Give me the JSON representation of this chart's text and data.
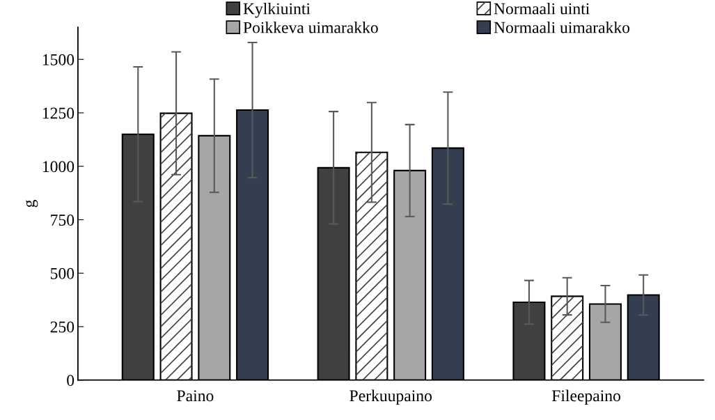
{
  "chart_data": {
    "type": "bar",
    "ylabel": "g",
    "categories": [
      "Paino",
      "Perkuupaino",
      "Fileepaino"
    ],
    "series": [
      {
        "name": "Kylkiuinti",
        "color": "#404040",
        "values": [
          1150,
          993,
          364
        ],
        "errors": [
          315,
          263,
          102
        ]
      },
      {
        "name": "Normaali uinti",
        "color": "#ffffff",
        "values": [
          1248,
          1065,
          392
        ],
        "errors": [
          287,
          233,
          87
        ]
      },
      {
        "name": "Poikkeva uimarakko",
        "color": "#a6a6a6",
        "values": [
          1143,
          980,
          356
        ],
        "errors": [
          265,
          215,
          86
        ]
      },
      {
        "name": "Normaali uimarakko",
        "color": "#333f50",
        "values": [
          1263,
          1085,
          398
        ],
        "errors": [
          316,
          262,
          94
        ]
      }
    ],
    "ylim": [
      0,
      1650
    ],
    "yticks": [
      0,
      250,
      500,
      750,
      1000,
      1250,
      1500
    ],
    "grid": false,
    "legend": "top"
  }
}
